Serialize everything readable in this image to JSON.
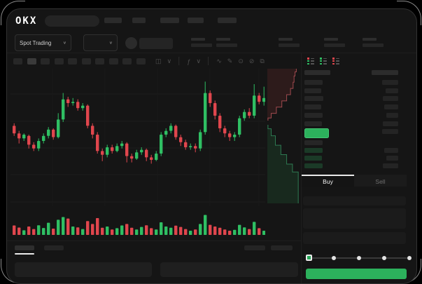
{
  "brand": {
    "logo_text": "OKX"
  },
  "header": {
    "market_selector_label": "Spot Trading",
    "market_selector_chevron": "∨",
    "pair_selector_chevron": "∨"
  },
  "toolbar": {
    "interval_placeholder_count": 10,
    "icons": [
      "◫",
      "∨",
      "│",
      "ƒ",
      "∨",
      "│",
      "∿",
      "✎",
      "⊙",
      "⊘",
      "⧉"
    ]
  },
  "colors": {
    "up_green": "#2fbf63",
    "down_red": "#e0464d",
    "accent_green": "#2cb15c",
    "depth_ask_line": "#a04a4f",
    "depth_bid_line": "#2e7a52"
  },
  "order_book": {
    "toggles": [
      {
        "name": "view-combined",
        "rows": [
          "#e0464d",
          "#2fbf63",
          "#2fbf63"
        ]
      },
      {
        "name": "view-bids",
        "rows": [
          "#2fbf63",
          "#2fbf63",
          "#2fbf63"
        ]
      },
      {
        "name": "view-asks",
        "rows": [
          "#e0464d",
          "#e0464d",
          "#e0464d"
        ]
      }
    ],
    "header_row": {
      "price_w": 37,
      "amount_w": 38
    },
    "asks": [
      {
        "price_w": 26,
        "amount_w": 23
      },
      {
        "price_w": 24,
        "amount_w": 18
      },
      {
        "price_w": 27,
        "amount_w": 22
      },
      {
        "price_w": 24,
        "amount_w": 20
      },
      {
        "price_w": 26,
        "amount_w": 17
      },
      {
        "price_w": 25,
        "amount_w": 22
      }
    ],
    "last_price_amount_w": 23,
    "bids": [
      {
        "price_w": 26,
        "amount_w": 0,
        "tint": "gray"
      },
      {
        "price_w": 26,
        "amount_w": 20,
        "tint": "green"
      },
      {
        "price_w": 25,
        "amount_w": 17,
        "tint": "green"
      },
      {
        "price_w": 26,
        "amount_w": 22,
        "tint": "green"
      }
    ]
  },
  "order_panel": {
    "tab_buy": "Buy",
    "tab_sell": "Sell",
    "active_tab": "Buy",
    "buy_button_label": "",
    "slider": {
      "positions": [
        0,
        25,
        50,
        75,
        100
      ],
      "value": 0
    }
  },
  "chart_data": {
    "type": "candlestick",
    "title": "",
    "axis_labels_visible": false,
    "value_scale": "relative 0-100 (no numeric labels rendered in screenshot)",
    "grid": {
      "horizontal_lines": 5,
      "vertical_lines": 5
    },
    "candles": [
      {
        "o": 62,
        "h": 64,
        "l": 54,
        "c": 56
      },
      {
        "o": 56,
        "h": 58,
        "l": 48,
        "c": 52
      },
      {
        "o": 52,
        "h": 56,
        "l": 50,
        "c": 55
      },
      {
        "o": 54,
        "h": 55,
        "l": 44,
        "c": 47
      },
      {
        "o": 47,
        "h": 49,
        "l": 42,
        "c": 44
      },
      {
        "o": 44,
        "h": 52,
        "l": 42,
        "c": 50
      },
      {
        "o": 50,
        "h": 56,
        "l": 48,
        "c": 54
      },
      {
        "o": 54,
        "h": 61,
        "l": 52,
        "c": 59
      },
      {
        "o": 59,
        "h": 60,
        "l": 51,
        "c": 53
      },
      {
        "o": 53,
        "h": 72,
        "l": 52,
        "c": 67
      },
      {
        "o": 67,
        "h": 88,
        "l": 65,
        "c": 83
      },
      {
        "o": 83,
        "h": 85,
        "l": 77,
        "c": 80
      },
      {
        "o": 80,
        "h": 84,
        "l": 78,
        "c": 81
      },
      {
        "o": 81,
        "h": 83,
        "l": 74,
        "c": 76
      },
      {
        "o": 76,
        "h": 80,
        "l": 74,
        "c": 78
      },
      {
        "o": 78,
        "h": 79,
        "l": 60,
        "c": 62
      },
      {
        "o": 62,
        "h": 64,
        "l": 52,
        "c": 55
      },
      {
        "o": 55,
        "h": 57,
        "l": 40,
        "c": 42
      },
      {
        "o": 42,
        "h": 44,
        "l": 34,
        "c": 39
      },
      {
        "o": 39,
        "h": 47,
        "l": 37,
        "c": 45
      },
      {
        "o": 45,
        "h": 47,
        "l": 40,
        "c": 42
      },
      {
        "o": 42,
        "h": 48,
        "l": 41,
        "c": 46
      },
      {
        "o": 46,
        "h": 50,
        "l": 44,
        "c": 48
      },
      {
        "o": 48,
        "h": 49,
        "l": 33,
        "c": 38
      },
      {
        "o": 38,
        "h": 40,
        "l": 33,
        "c": 36
      },
      {
        "o": 36,
        "h": 43,
        "l": 35,
        "c": 41
      },
      {
        "o": 41,
        "h": 45,
        "l": 39,
        "c": 43
      },
      {
        "o": 43,
        "h": 44,
        "l": 34,
        "c": 37
      },
      {
        "o": 37,
        "h": 39,
        "l": 32,
        "c": 35
      },
      {
        "o": 35,
        "h": 42,
        "l": 34,
        "c": 40
      },
      {
        "o": 40,
        "h": 57,
        "l": 38,
        "c": 55
      },
      {
        "o": 55,
        "h": 60,
        "l": 53,
        "c": 58
      },
      {
        "o": 58,
        "h": 64,
        "l": 56,
        "c": 62
      },
      {
        "o": 62,
        "h": 63,
        "l": 51,
        "c": 53
      },
      {
        "o": 53,
        "h": 55,
        "l": 46,
        "c": 49
      },
      {
        "o": 49,
        "h": 51,
        "l": 43,
        "c": 45
      },
      {
        "o": 45,
        "h": 48,
        "l": 43,
        "c": 46
      },
      {
        "o": 46,
        "h": 48,
        "l": 41,
        "c": 44
      },
      {
        "o": 44,
        "h": 59,
        "l": 42,
        "c": 57
      },
      {
        "o": 57,
        "h": 97,
        "l": 55,
        "c": 88
      },
      {
        "o": 88,
        "h": 90,
        "l": 77,
        "c": 80
      },
      {
        "o": 80,
        "h": 82,
        "l": 67,
        "c": 70
      },
      {
        "o": 70,
        "h": 72,
        "l": 57,
        "c": 60
      },
      {
        "o": 60,
        "h": 62,
        "l": 53,
        "c": 56
      },
      {
        "o": 56,
        "h": 58,
        "l": 50,
        "c": 53
      },
      {
        "o": 53,
        "h": 57,
        "l": 50,
        "c": 55
      },
      {
        "o": 55,
        "h": 70,
        "l": 53,
        "c": 68
      },
      {
        "o": 68,
        "h": 75,
        "l": 66,
        "c": 73
      },
      {
        "o": 73,
        "h": 76,
        "l": 68,
        "c": 70
      },
      {
        "o": 70,
        "h": 95,
        "l": 68,
        "c": 86
      },
      {
        "o": 86,
        "h": 88,
        "l": 79,
        "c": 81
      },
      {
        "o": 81,
        "h": 93,
        "l": 78,
        "c": 84
      }
    ],
    "volume": [
      45,
      35,
      22,
      40,
      28,
      46,
      33,
      58,
      30,
      72,
      85,
      78,
      40,
      36,
      28,
      66,
      52,
      80,
      34,
      40,
      26,
      32,
      45,
      52,
      34,
      26,
      38,
      46,
      32,
      26,
      60,
      40,
      34,
      44,
      38,
      28,
      20,
      26,
      52,
      95,
      48,
      40,
      34,
      26,
      20,
      24,
      48,
      36,
      28,
      62,
      32,
      20
    ],
    "depth": {
      "ask_line": [
        [
          0.9,
          0.0
        ],
        [
          0.9,
          0.06
        ],
        [
          0.86,
          0.06
        ],
        [
          0.86,
          0.14
        ],
        [
          0.83,
          0.14
        ],
        [
          0.83,
          0.26
        ],
        [
          0.8,
          0.26
        ],
        [
          0.8,
          0.38
        ],
        [
          0.72,
          0.38
        ],
        [
          0.72,
          0.5
        ],
        [
          0.6,
          0.5
        ],
        [
          0.6,
          0.62
        ],
        [
          0.45,
          0.62
        ],
        [
          0.45,
          0.74
        ],
        [
          0.28,
          0.74
        ],
        [
          0.28,
          0.86
        ],
        [
          0.12,
          0.86
        ],
        [
          0.12,
          0.95
        ],
        [
          0.02,
          0.95
        ],
        [
          0.02,
          1.0
        ]
      ],
      "bid_line": [
        [
          0.02,
          0.0
        ],
        [
          0.02,
          0.05
        ],
        [
          0.12,
          0.05
        ],
        [
          0.12,
          0.14
        ],
        [
          0.25,
          0.14
        ],
        [
          0.25,
          0.26
        ],
        [
          0.42,
          0.26
        ],
        [
          0.42,
          0.38
        ],
        [
          0.6,
          0.38
        ],
        [
          0.6,
          0.5
        ],
        [
          0.78,
          0.5
        ],
        [
          0.78,
          0.6
        ],
        [
          0.96,
          0.6
        ],
        [
          0.96,
          1.0
        ]
      ]
    }
  }
}
